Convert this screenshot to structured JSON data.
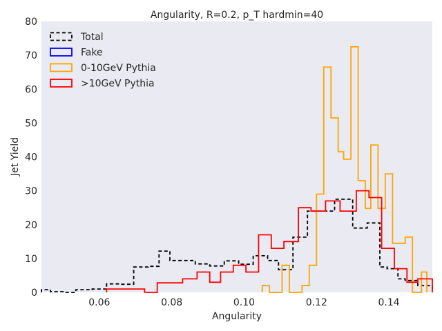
{
  "chart_data": {
    "type": "step",
    "title": "Angularity, R=0.2, p_T hardmin=40",
    "xlabel": "Angularity",
    "ylabel": "Jet Yield",
    "xlim": [
      0.044,
      0.152
    ],
    "ylim": [
      0,
      80
    ],
    "xticks": [
      0.06,
      0.08,
      0.1,
      0.12,
      0.14
    ],
    "xtick_labels": [
      "0.06",
      "0.08",
      "0.10",
      "0.12",
      "0.14"
    ],
    "yticks": [
      0,
      10,
      20,
      30,
      40,
      50,
      60,
      70,
      80
    ],
    "ytick_labels": [
      "0",
      "10",
      "20",
      "30",
      "40",
      "50",
      "60",
      "70",
      "80"
    ],
    "grid": false,
    "background": "#eaeaf2",
    "legend_position": "upper-left",
    "series": [
      {
        "name": "Total",
        "color": "#000000",
        "linestyle": "dashed",
        "edges": [
          0.044,
          0.0465,
          0.0505,
          0.0535,
          0.058,
          0.062,
          0.0655,
          0.0695,
          0.0735,
          0.0765,
          0.0795,
          0.0825,
          0.0865,
          0.0905,
          0.0945,
          0.0985,
          0.1025,
          0.1065,
          0.1095,
          0.1135,
          0.1175,
          0.1215,
          0.125,
          0.13,
          0.134,
          0.1375,
          0.1395,
          0.1425,
          0.1445,
          0.148,
          0.152
        ],
        "values": [
          0.8,
          0.2,
          0,
          0.8,
          1.0,
          2.5,
          2.4,
          7.5,
          7.7,
          12.2,
          9.4,
          9.4,
          8.4,
          7.8,
          9.3,
          8.3,
          10.8,
          9.4,
          6.7,
          16.3,
          24.0,
          24.0,
          27.5,
          19.0,
          20.5,
          7.5,
          7.0,
          4.0,
          3.5,
          2.0
        ]
      },
      {
        "name": "Fake",
        "color": "#0000ff",
        "linestyle": "solid",
        "edges": [],
        "values": []
      },
      {
        "name": "0-10GeV Pythia",
        "color": "#ffa500",
        "linestyle": "solid",
        "edges": [
          0.105,
          0.107,
          0.1105,
          0.1125,
          0.116,
          0.118,
          0.12,
          0.122,
          0.124,
          0.126,
          0.1275,
          0.1295,
          0.1315,
          0.1335,
          0.135,
          0.137,
          0.139,
          0.141,
          0.1445,
          0.1465,
          0.149,
          0.1505
        ],
        "values": [
          2.0,
          0,
          8.0,
          0,
          2.0,
          8.0,
          29.0,
          66.5,
          51.5,
          41.5,
          39.3,
          72.5,
          33.0,
          24.8,
          43.5,
          24.8,
          35.0,
          14.5,
          16.3,
          0,
          6.0
        ]
      },
      {
        "name": ">10GeV Pythia",
        "color": "#ff0000",
        "linestyle": "solid",
        "edges": [
          0.062,
          0.0725,
          0.076,
          0.083,
          0.087,
          0.0905,
          0.0935,
          0.097,
          0.1005,
          0.104,
          0.1075,
          0.111,
          0.115,
          0.1185,
          0.1225,
          0.1265,
          0.131,
          0.1345,
          0.138,
          0.1415,
          0.145,
          0.148,
          0.152
        ],
        "values": [
          1.0,
          0,
          2.8,
          4.0,
          6.0,
          3.0,
          6.0,
          8.0,
          6.0,
          17.0,
          13.0,
          15.0,
          25.0,
          24.0,
          27.0,
          24.0,
          30.0,
          28.0,
          13.0,
          7.0,
          3.0,
          4.0
        ]
      }
    ]
  }
}
